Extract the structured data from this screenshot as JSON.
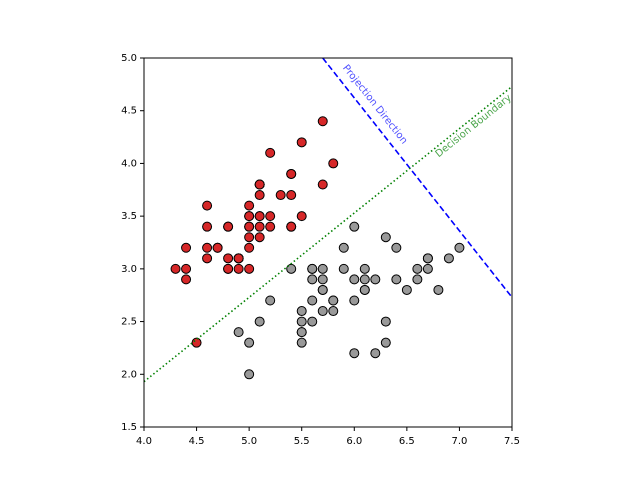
{
  "chart_data": {
    "type": "scatter",
    "xlim": [
      4.0,
      7.5
    ],
    "ylim": [
      1.5,
      5.0
    ],
    "xticks": [
      {
        "value": 4,
        "label": "4.0"
      },
      4.5,
      {
        "value": 5,
        "label": "5.0"
      },
      5.5,
      {
        "value": 6,
        "label": "6.0"
      },
      6.5,
      {
        "value": 7,
        "label": "7.0"
      },
      7.5
    ],
    "yticks": [
      1.5,
      {
        "value": 2,
        "label": "2.0"
      },
      2.5,
      {
        "value": 3,
        "label": "3.0"
      },
      3.5,
      {
        "value": 4,
        "label": "4.0"
      },
      4.5,
      {
        "value": 5,
        "label": "5.0"
      }
    ],
    "series": [
      {
        "color": "#d62728",
        "x": [
          5.1,
          4.9,
          4.7,
          4.6,
          5.0,
          5.4,
          4.6,
          5.0,
          4.4,
          4.9,
          5.4,
          4.8,
          4.8,
          4.3,
          5.8,
          5.7,
          5.4,
          5.1,
          5.7,
          5.1,
          5.4,
          5.1,
          4.6,
          5.1,
          4.8,
          5.0,
          5.0,
          5.2,
          5.2,
          4.7,
          4.8,
          5.4,
          5.2,
          5.5,
          4.9,
          5.0,
          5.5,
          4.9,
          4.4,
          5.1,
          5.0,
          4.5,
          4.4,
          5.0,
          5.1,
          4.8,
          5.1,
          4.6,
          5.3,
          5.0
        ],
        "values": [
          3.5,
          3.0,
          3.2,
          3.1,
          3.6,
          3.9,
          3.4,
          3.4,
          2.9,
          3.1,
          3.7,
          3.4,
          3.0,
          3.0,
          4.0,
          4.4,
          3.9,
          3.5,
          3.8,
          3.8,
          3.4,
          3.7,
          3.6,
          3.3,
          3.4,
          3.0,
          3.4,
          3.5,
          3.4,
          3.2,
          3.1,
          3.4,
          4.1,
          4.2,
          3.1,
          3.2,
          3.5,
          3.1,
          3.0,
          3.4,
          3.5,
          2.3,
          3.2,
          3.5,
          3.8,
          3.0,
          3.8,
          3.2,
          3.7,
          3.3
        ]
      },
      {
        "color": "#999999",
        "x": [
          7.0,
          6.4,
          6.9,
          5.5,
          6.5,
          5.7,
          6.3,
          4.9,
          6.6,
          5.2,
          5.0,
          5.9,
          6.0,
          6.1,
          5.6,
          6.7,
          5.6,
          5.8,
          6.2,
          5.6,
          5.9,
          6.1,
          6.3,
          6.1,
          6.4,
          6.6,
          6.8,
          6.7,
          6.0,
          5.7,
          5.5,
          5.5,
          5.8,
          6.0,
          5.4,
          6.0,
          6.7,
          6.3,
          5.6,
          5.5,
          5.5,
          6.1,
          5.8,
          5.0,
          5.6,
          5.7,
          5.7,
          6.2,
          5.1,
          5.7
        ],
        "values": [
          3.2,
          3.2,
          3.1,
          2.3,
          2.8,
          2.8,
          3.3,
          2.4,
          2.9,
          2.7,
          2.0,
          3.0,
          2.2,
          2.9,
          2.9,
          3.1,
          3.0,
          2.7,
          2.2,
          2.5,
          3.2,
          2.8,
          2.5,
          2.8,
          2.9,
          3.0,
          2.8,
          3.0,
          2.9,
          2.6,
          2.4,
          2.4,
          2.7,
          2.7,
          3.0,
          3.4,
          3.1,
          2.3,
          3.0,
          2.5,
          2.6,
          3.0,
          2.6,
          2.3,
          2.7,
          3.0,
          2.9,
          2.9,
          2.5,
          2.8
        ]
      }
    ],
    "lines": [
      {
        "name": "Projection Direction",
        "color": "#0000ff",
        "style": "dashed",
        "x": [
          5.7,
          7.5
        ],
        "values": [
          5.0,
          2.73
        ]
      },
      {
        "name": "Decision Boundary",
        "color": "#008000",
        "style": "dotted",
        "x": [
          4.0,
          7.5
        ],
        "values": [
          1.93,
          4.73
        ]
      }
    ]
  }
}
